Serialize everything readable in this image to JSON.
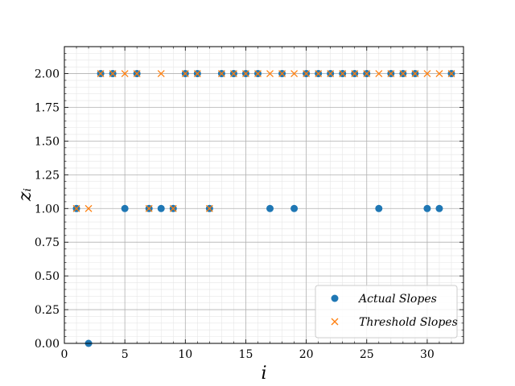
{
  "chart_data": {
    "type": "scatter",
    "xlabel": "i",
    "ylabel": "zᵢ",
    "xlim": [
      0,
      33
    ],
    "ylim": [
      0,
      2.2
    ],
    "x_ticks": [
      0,
      5,
      10,
      15,
      20,
      25,
      30
    ],
    "y_ticks": [
      0.0,
      0.25,
      0.5,
      0.75,
      1.0,
      1.25,
      1.5,
      1.75,
      2.0
    ],
    "x_tick_labels": [
      "0",
      "5",
      "10",
      "15",
      "20",
      "25",
      "30"
    ],
    "y_tick_labels": [
      "0.00",
      "0.25",
      "0.50",
      "0.75",
      "1.00",
      "1.25",
      "1.50",
      "1.75",
      "2.00"
    ],
    "grid": true,
    "minor_grid": true,
    "legend_position": "bottom-right",
    "series": [
      {
        "name": "Actual Slopes",
        "marker": "circle",
        "color": "#1f77b4",
        "x": [
          1,
          2,
          3,
          4,
          5,
          6,
          7,
          8,
          9,
          10,
          11,
          12,
          13,
          14,
          15,
          16,
          17,
          18,
          19,
          20,
          21,
          22,
          23,
          24,
          25,
          26,
          27,
          28,
          29,
          30,
          31,
          32
        ],
        "y": [
          1,
          0,
          2,
          2,
          1,
          2,
          1,
          1,
          1,
          2,
          2,
          1,
          2,
          2,
          2,
          2,
          1,
          2,
          1,
          2,
          2,
          2,
          2,
          2,
          2,
          1,
          2,
          2,
          2,
          1,
          1,
          2
        ]
      },
      {
        "name": "Threshold Slopes",
        "marker": "x",
        "color": "#ff7f0e",
        "x": [
          1,
          2,
          3,
          4,
          5,
          6,
          7,
          8,
          9,
          10,
          11,
          12,
          13,
          14,
          15,
          16,
          17,
          18,
          19,
          20,
          21,
          22,
          23,
          24,
          25,
          26,
          27,
          28,
          29,
          30,
          31,
          32
        ],
        "y": [
          1,
          1,
          2,
          2,
          2,
          2,
          1,
          2,
          1,
          2,
          2,
          1,
          2,
          2,
          2,
          2,
          2,
          2,
          2,
          2,
          2,
          2,
          2,
          2,
          2,
          2,
          2,
          2,
          2,
          2,
          2,
          2
        ]
      }
    ]
  }
}
